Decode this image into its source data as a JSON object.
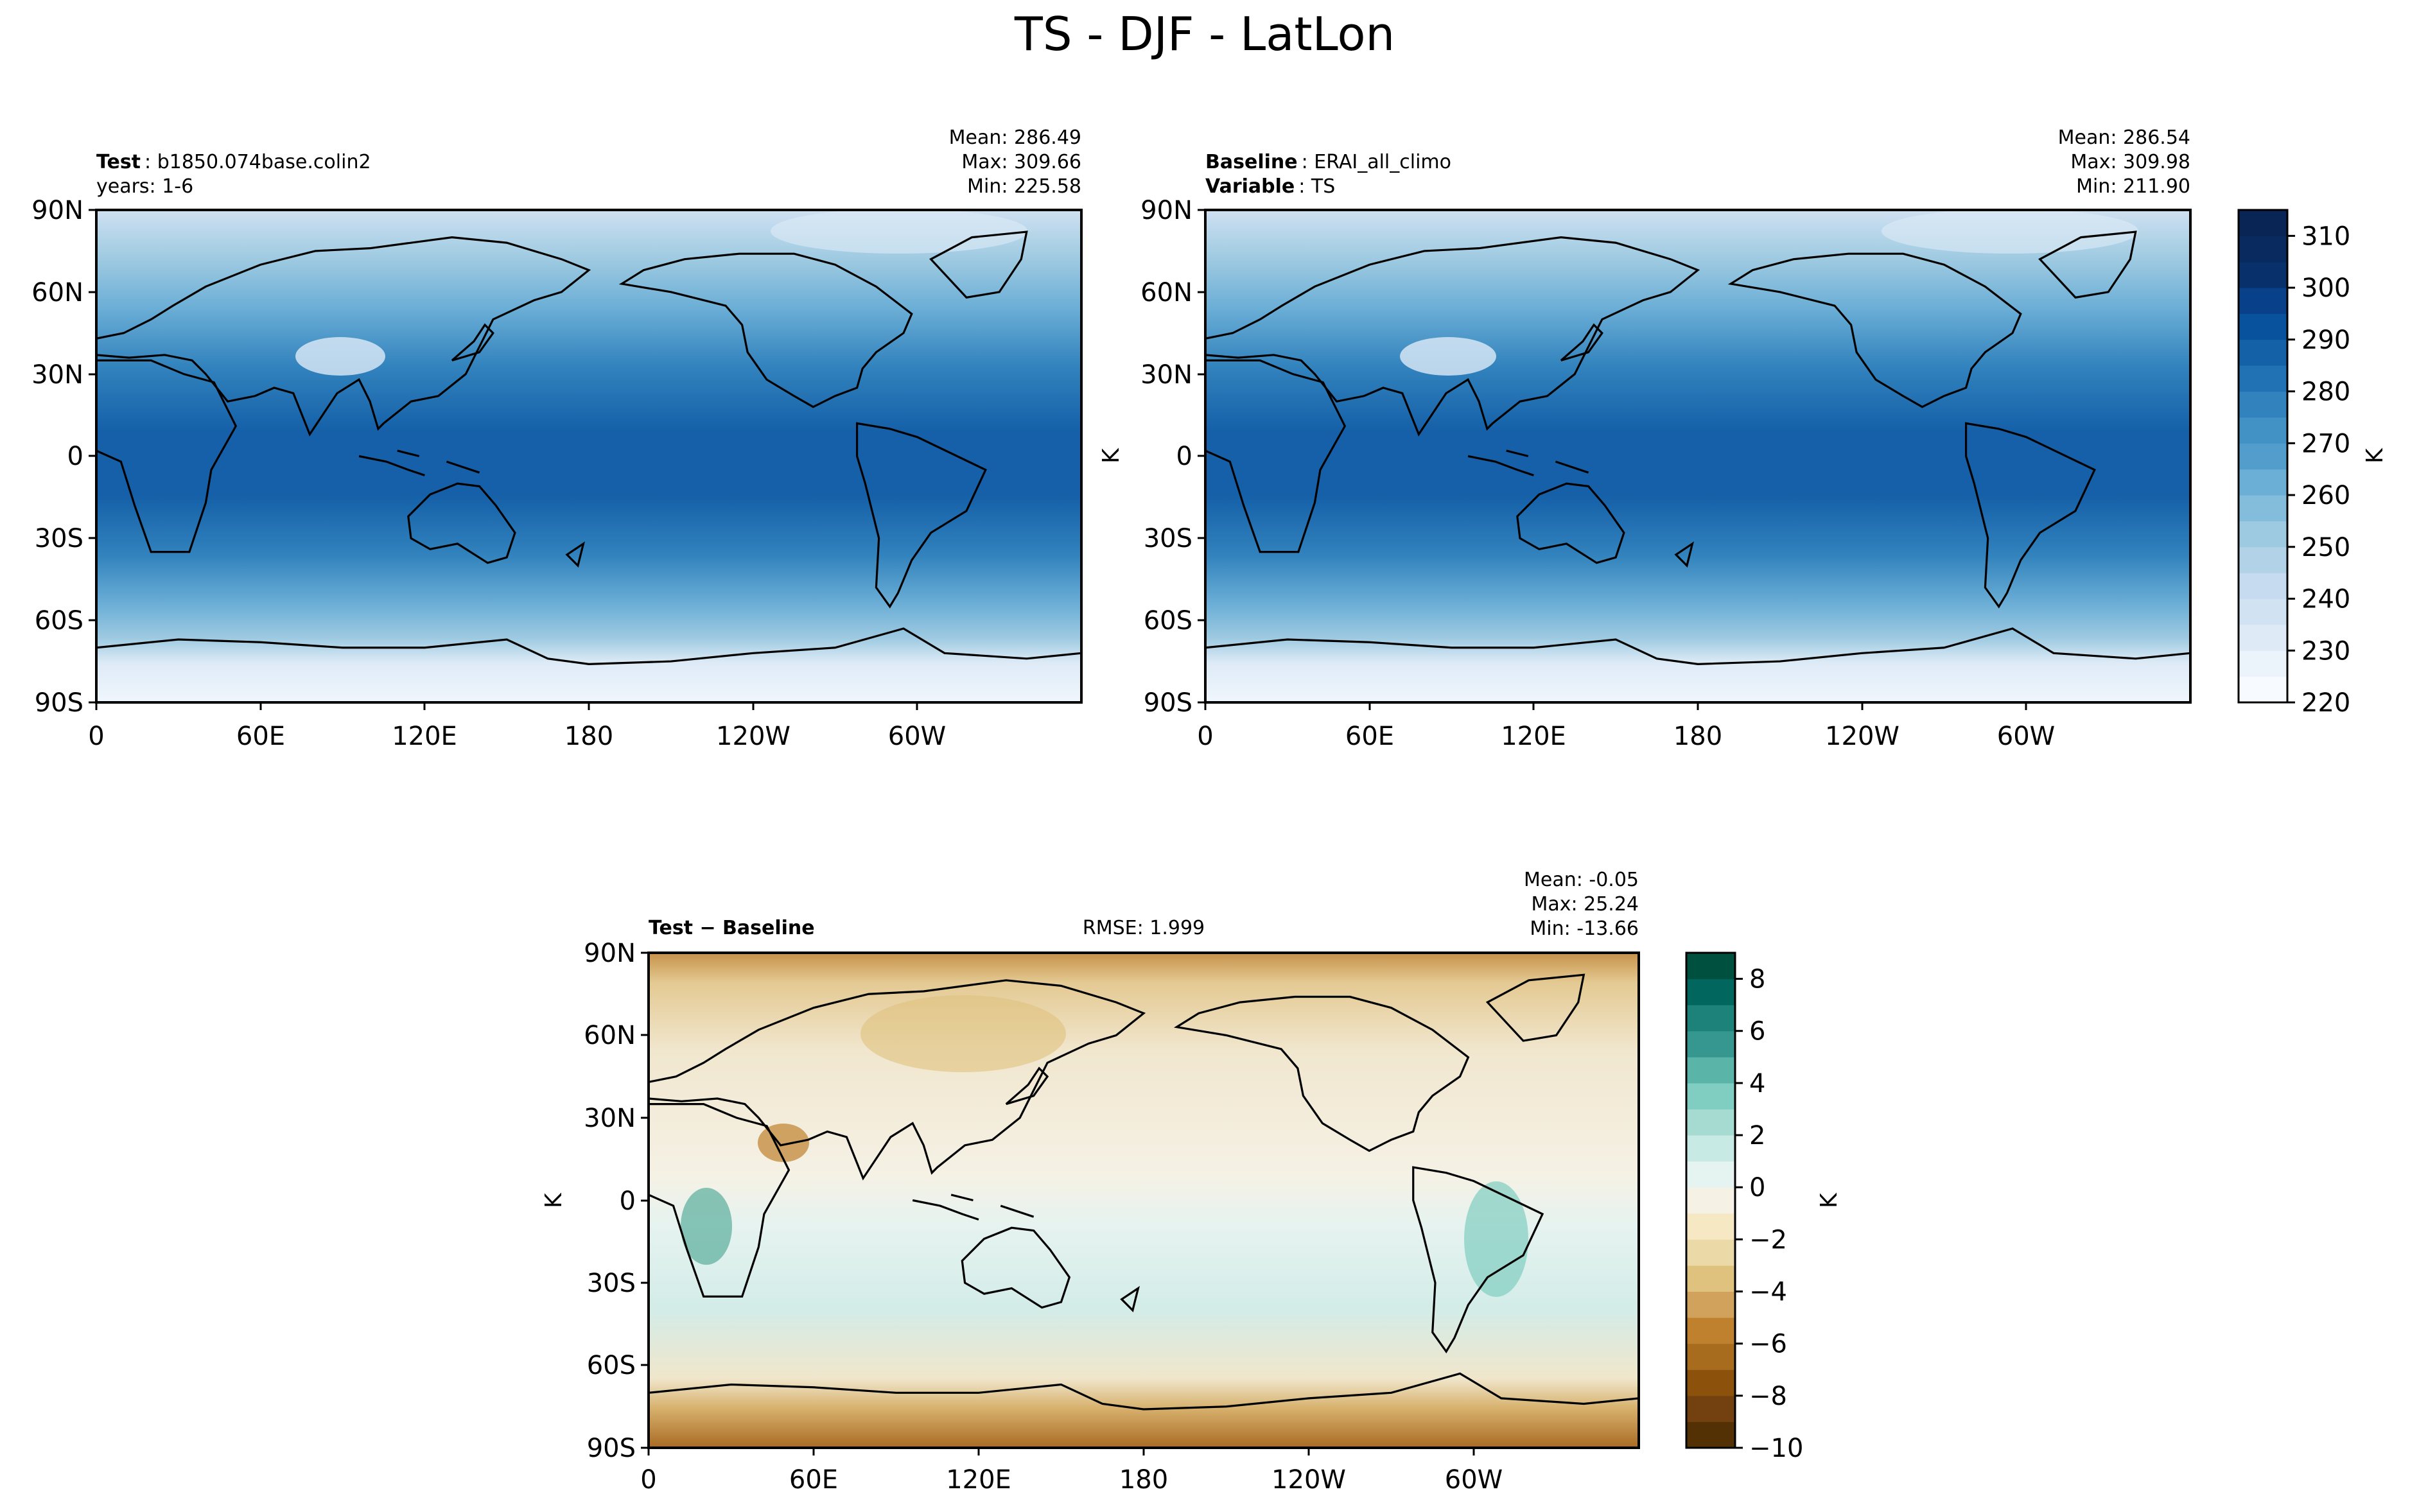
{
  "figure": {
    "title": "TS - DJF - LatLon"
  },
  "panels": [
    {
      "id": "test",
      "header_left": [
        {
          "key": "Test",
          "value": "b1850.074base.colin2"
        },
        {
          "key": "",
          "value": "years: 1-6"
        }
      ],
      "stats": [
        "Mean: 286.49",
        "Max: 309.66",
        "Min: 225.58"
      ],
      "ylabel": "",
      "colorbar_label": ""
    },
    {
      "id": "baseline",
      "header_left": [
        {
          "key": "Baseline",
          "value": "ERAI_all_climo"
        },
        {
          "key": "Variable",
          "value": "TS"
        }
      ],
      "stats": [
        "Mean: 286.54",
        "Max: 309.98",
        "Min: 211.90"
      ],
      "ylabel": "K",
      "colorbar_label": "K"
    },
    {
      "id": "diff",
      "header_left": [
        {
          "key": "Test − Baseline",
          "value": ""
        }
      ],
      "rmse": "RMSE: 1.999",
      "stats": [
        "Mean: -0.05",
        "Max: 25.24",
        "Min: -13.66"
      ],
      "ylabel": "K",
      "colorbar_label": "K"
    }
  ],
  "axes": {
    "lat_ticks": [
      "90N",
      "60N",
      "30N",
      "0",
      "30S",
      "60S",
      "90S"
    ],
    "lon_ticks": [
      "0",
      "60E",
      "120E",
      "180",
      "120W",
      "60W"
    ]
  },
  "chart_data": [
    {
      "type": "heatmap",
      "title": "Test: b1850.074base.colin2",
      "subtitle": "years: 1-6",
      "variable": "TS",
      "season": "DJF",
      "units": "K",
      "xlim": [
        0,
        360
      ],
      "ylim": [
        -90,
        90
      ],
      "stats": {
        "mean": 286.49,
        "max": 309.66,
        "min": 225.58
      },
      "colormap": "Blues"
    },
    {
      "type": "heatmap",
      "title": "Baseline: ERAI_all_climo",
      "subtitle": "Variable: TS",
      "variable": "TS",
      "season": "DJF",
      "units": "K",
      "xlim": [
        0,
        360
      ],
      "ylim": [
        -90,
        90
      ],
      "stats": {
        "mean": 286.54,
        "max": 309.98,
        "min": 211.9
      },
      "colormap": "Blues",
      "colorbar": {
        "label": "K",
        "ticks": [
          220,
          230,
          240,
          250,
          260,
          270,
          280,
          290,
          300,
          310
        ],
        "range": [
          220,
          315
        ]
      }
    },
    {
      "type": "heatmap",
      "title": "Test − Baseline",
      "variable": "TS",
      "season": "DJF",
      "units": "K",
      "xlim": [
        0,
        360
      ],
      "ylim": [
        -90,
        90
      ],
      "rmse": 1.999,
      "stats": {
        "mean": -0.05,
        "max": 25.24,
        "min": -13.66
      },
      "colormap": "BrBG",
      "colorbar": {
        "label": "K",
        "ticks": [
          -10,
          -8,
          -6,
          -4,
          -2,
          0,
          2,
          4,
          6,
          8
        ],
        "range": [
          -10,
          9
        ]
      }
    }
  ]
}
